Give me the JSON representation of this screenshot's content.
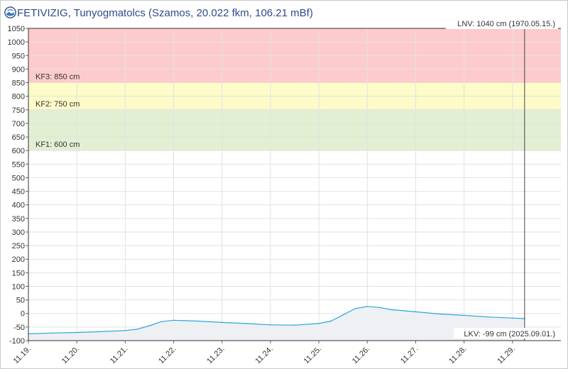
{
  "header": {
    "title": "FETIVIZIG, Tunyogmatolcs (Szamos, 20.022 fkm, 106.21 mBf)",
    "logo_icon": "globe-logo-icon"
  },
  "chart_data": {
    "type": "area",
    "title": "FETIVIZIG, Tunyogmatolcs (Szamos, 20.022 fkm, 106.21 mBf)",
    "xlabel": "",
    "ylabel": "",
    "ylim": [
      -100,
      1050
    ],
    "yticks": [
      -100,
      -50,
      0,
      50,
      100,
      150,
      200,
      250,
      300,
      350,
      400,
      450,
      500,
      550,
      600,
      650,
      700,
      750,
      800,
      850,
      900,
      950,
      1000,
      1050
    ],
    "xlim": [
      "2025-11-19",
      "2025-11-30"
    ],
    "xticks": [
      {
        "date": "2025-11-19",
        "label": "11.19."
      },
      {
        "date": "2025-11-20",
        "label": "11.20."
      },
      {
        "date": "2025-11-21",
        "label": "11.21."
      },
      {
        "date": "2025-11-22",
        "label": "11.22."
      },
      {
        "date": "2025-11-23",
        "label": "11.23."
      },
      {
        "date": "2025-11-24",
        "label": "11.24."
      },
      {
        "date": "2025-11-25",
        "label": "11.25."
      },
      {
        "date": "2025-11-26",
        "label": "11.26."
      },
      {
        "date": "2025-11-27",
        "label": "11.27."
      },
      {
        "date": "2025-11-28",
        "label": "11.28."
      },
      {
        "date": "2025-11-29",
        "label": "11.29."
      }
    ],
    "grid": true,
    "zones": [
      {
        "label": "KF1: 600 cm",
        "from": 600,
        "to": 750,
        "color": "#e3efd3"
      },
      {
        "label": "KF2: 750 cm",
        "from": 750,
        "to": 850,
        "color": "#fdfbc7"
      },
      {
        "label": "KF3: 850 cm",
        "from": 850,
        "to": 1050,
        "color": "#fdcbcb"
      }
    ],
    "extremes": {
      "max_label": "LNV: 1040 cm (1970.05.15.)",
      "min_label": "LKV: -99 cm (2025.09.01.)"
    },
    "current_time": "2025-11-29 06:00",
    "series": [
      {
        "color": "#2aa7d8",
        "fill": "#eef0f4",
        "points": [
          [
            "2025-11-19 00:00",
            -75
          ],
          [
            "2025-11-19 12:00",
            -72
          ],
          [
            "2025-11-20 00:00",
            -70
          ],
          [
            "2025-11-20 12:00",
            -67
          ],
          [
            "2025-11-21 00:00",
            -63
          ],
          [
            "2025-11-21 06:00",
            -58
          ],
          [
            "2025-11-21 12:00",
            -45
          ],
          [
            "2025-11-21 18:00",
            -30
          ],
          [
            "2025-11-22 00:00",
            -25
          ],
          [
            "2025-11-22 12:00",
            -28
          ],
          [
            "2025-11-23 00:00",
            -33
          ],
          [
            "2025-11-23 12:00",
            -37
          ],
          [
            "2025-11-24 00:00",
            -42
          ],
          [
            "2025-11-24 12:00",
            -43
          ],
          [
            "2025-11-25 00:00",
            -37
          ],
          [
            "2025-11-25 06:00",
            -28
          ],
          [
            "2025-11-25 12:00",
            -5
          ],
          [
            "2025-11-25 18:00",
            18
          ],
          [
            "2025-11-26 00:00",
            26
          ],
          [
            "2025-11-26 06:00",
            22
          ],
          [
            "2025-11-26 12:00",
            14
          ],
          [
            "2025-11-27 00:00",
            6
          ],
          [
            "2025-11-27 12:00",
            -2
          ],
          [
            "2025-11-28 00:00",
            -7
          ],
          [
            "2025-11-28 12:00",
            -13
          ],
          [
            "2025-11-29 00:00",
            -17
          ],
          [
            "2025-11-29 06:00",
            -19
          ]
        ]
      }
    ]
  }
}
